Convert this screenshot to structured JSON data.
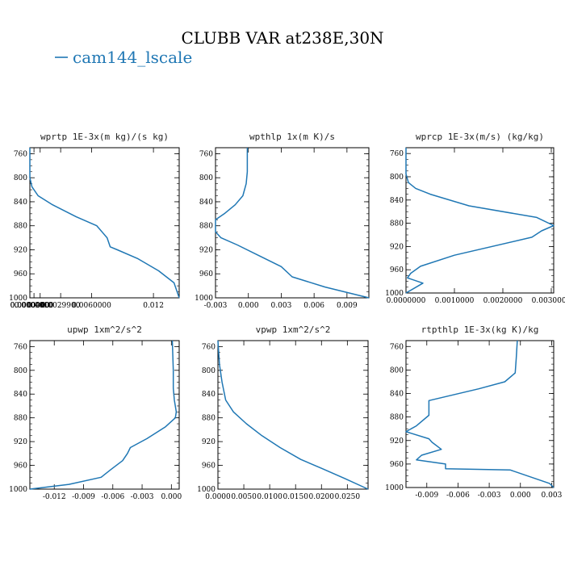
{
  "title": "CLUBB VAR at238E,30N",
  "legend": {
    "label": "cam144_lscale",
    "color": "#1f77b4"
  },
  "chart_data": [
    {
      "type": "line",
      "title": "wprtp  1E-3x(m kg)/(s kg)",
      "xlim": [
        0,
        0.0145
      ],
      "xticks": [
        "0.0000000",
        "0.0004000",
        "0.0029900",
        "0.012",
        "0.0060000",
        "0.0010",
        "0.0000000"
      ],
      "ylim": [
        1000,
        750
      ],
      "yticks": [
        "760",
        "800",
        "840",
        "880",
        "920",
        "960",
        "1000"
      ],
      "series": [
        {
          "x": [
            0,
            0,
            0.0002,
            0.0008,
            0.0022,
            0.0045,
            0.0065,
            0.0075,
            0.0078,
            0.0085,
            0.0105,
            0.0125,
            0.014,
            0.0145
          ],
          "y": [
            750,
            800,
            815,
            830,
            845,
            865,
            880,
            900,
            915,
            920,
            935,
            955,
            975,
            1000
          ]
        }
      ]
    },
    {
      "type": "line",
      "title": "wpthlp  1x(m K)/s",
      "xlim": [
        -0.003,
        0.011
      ],
      "xticks": [
        "-0.003",
        "0.000",
        "0.003",
        "0.006",
        "0.009"
      ],
      "ylim": [
        1000,
        750
      ],
      "yticks": [
        "760",
        "800",
        "840",
        "880",
        "920",
        "960",
        "1000"
      ],
      "series": [
        {
          "x": [
            -0.0001,
            -0.0001,
            -0.0002,
            -0.0005,
            -0.0012,
            -0.0022,
            -0.003,
            -0.003,
            -0.0025,
            -0.001,
            0.001,
            0.003,
            0.004,
            0.007,
            0.011
          ],
          "y": [
            750,
            790,
            810,
            830,
            845,
            860,
            870,
            890,
            900,
            912,
            930,
            948,
            965,
            982,
            1000
          ]
        }
      ]
    },
    {
      "type": "line",
      "title": "wprcp  1E-3x(m/s) (kg/kg)",
      "xlim": [
        0,
        0.00305
      ],
      "xticks": [
        "0.0000000",
        "0.0010000",
        "0.0020000",
        "0.0030000"
      ],
      "ylim": [
        1000,
        750
      ],
      "yticks": [
        "760",
        "800",
        "840",
        "880",
        "920",
        "960",
        "1000"
      ],
      "series": [
        {
          "x": [
            0,
            0,
            5e-05,
            0.0002,
            0.0005,
            0.0013,
            0.0027,
            0.00305,
            0.0028,
            0.0026,
            0.001,
            0.0003,
            0.0001,
            3e-05,
            0.00035,
            0
          ],
          "y": [
            750,
            795,
            810,
            820,
            830,
            850,
            870,
            884,
            893,
            904,
            935,
            954,
            966,
            974,
            983,
            1000
          ]
        }
      ]
    },
    {
      "type": "line",
      "title": "upwp  1xm^2/s^2",
      "xlim": [
        -0.0145,
        0.0008
      ],
      "xticks": [
        "-0.012",
        "-0.009",
        "-0.006",
        "-0.003",
        "0.000"
      ],
      "ylim": [
        1000,
        750
      ],
      "yticks": [
        "760",
        "800",
        "840",
        "880",
        "920",
        "960",
        "1000"
      ],
      "series": [
        {
          "x": [
            0.0001,
            0.0002,
            0.0002,
            0.0003,
            0.0005,
            0.0004,
            -0.0006,
            -0.0025,
            -0.0042,
            -0.0045,
            -0.005,
            -0.0062,
            -0.0072,
            -0.0105,
            -0.0145
          ],
          "y": [
            750,
            800,
            830,
            850,
            870,
            880,
            895,
            915,
            930,
            940,
            952,
            967,
            980,
            992,
            1000
          ]
        }
      ]
    },
    {
      "type": "line",
      "title": "vpwp  1xm^2/s^2",
      "xlim": [
        0,
        0.029
      ],
      "xticks": [
        "0.0000",
        "0.0050",
        "0.0100",
        "0.0150",
        "0.0200",
        "0.0250"
      ],
      "ylim": [
        1000,
        750
      ],
      "yticks": [
        "760",
        "800",
        "840",
        "880",
        "920",
        "960",
        "1000"
      ],
      "series": [
        {
          "x": [
            0,
            0.0003,
            0.0008,
            0.0015,
            0.003,
            0.0055,
            0.0085,
            0.012,
            0.016,
            0.02,
            0.0245,
            0.029
          ],
          "y": [
            750,
            790,
            820,
            850,
            870,
            890,
            910,
            930,
            950,
            965,
            982,
            1000
          ]
        }
      ]
    },
    {
      "type": "line",
      "title": "rtpthlp  1E-3x(kg K)/kg",
      "xlim": [
        -0.011,
        0.0032
      ],
      "xticks": [
        "-0.009",
        "-0.006",
        "-0.003",
        "0.000",
        "0.003"
      ],
      "ylim": [
        1000,
        750
      ],
      "yticks": [
        "760",
        "800",
        "840",
        "880",
        "920",
        "960",
        "1000"
      ],
      "series": [
        {
          "x": [
            -0.0003,
            -0.0004,
            -0.0005,
            -0.0015,
            -0.004,
            -0.0088,
            -0.0088,
            -0.01,
            -0.011,
            -0.0088,
            -0.0085,
            -0.0076,
            -0.0095,
            -0.01,
            -0.0072,
            -0.0072,
            -0.001,
            0.0028,
            0.0032
          ],
          "y": [
            750,
            780,
            805,
            820,
            832,
            852,
            877,
            895,
            905,
            917,
            923,
            935,
            945,
            953,
            960,
            968,
            970,
            993,
            1000
          ]
        }
      ]
    }
  ]
}
